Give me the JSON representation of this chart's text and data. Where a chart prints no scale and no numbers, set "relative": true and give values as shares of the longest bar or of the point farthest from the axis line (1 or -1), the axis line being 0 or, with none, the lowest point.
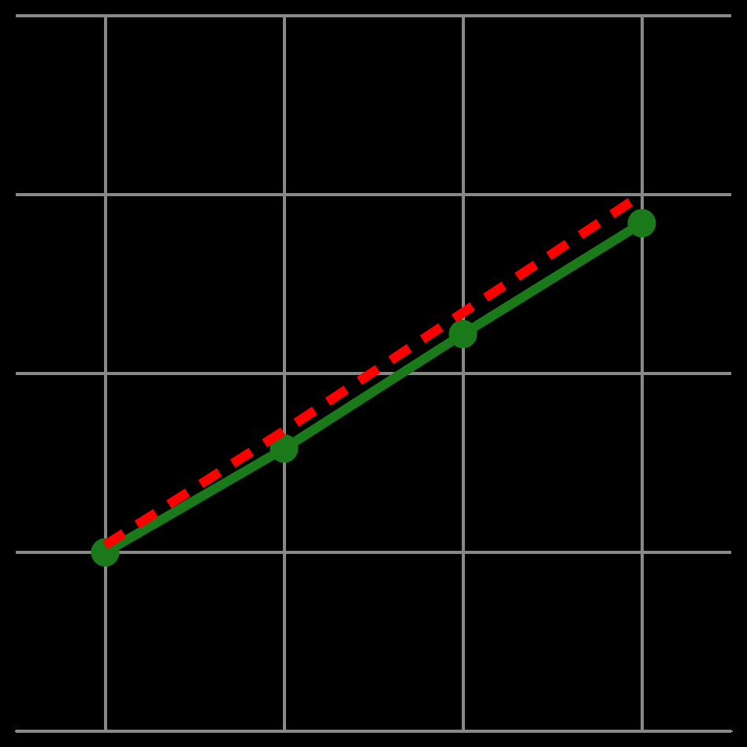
{
  "chart_data": {
    "type": "line",
    "relative": true,
    "categories": [
      null,
      null,
      null,
      null
    ],
    "grid": true,
    "legend": false,
    "tick_labels": false,
    "series": [
      {
        "color": "#ff0000",
        "values": [
          0.02,
          0.34,
          0.67,
          1
        ],
        "line_style": "dashed",
        "marker": "none"
      },
      {
        "color": "#1a7a1a",
        "values": [
          0,
          0.29,
          0.61,
          0.92
        ],
        "line_style": "solid",
        "marker": "circle"
      }
    ]
  }
}
